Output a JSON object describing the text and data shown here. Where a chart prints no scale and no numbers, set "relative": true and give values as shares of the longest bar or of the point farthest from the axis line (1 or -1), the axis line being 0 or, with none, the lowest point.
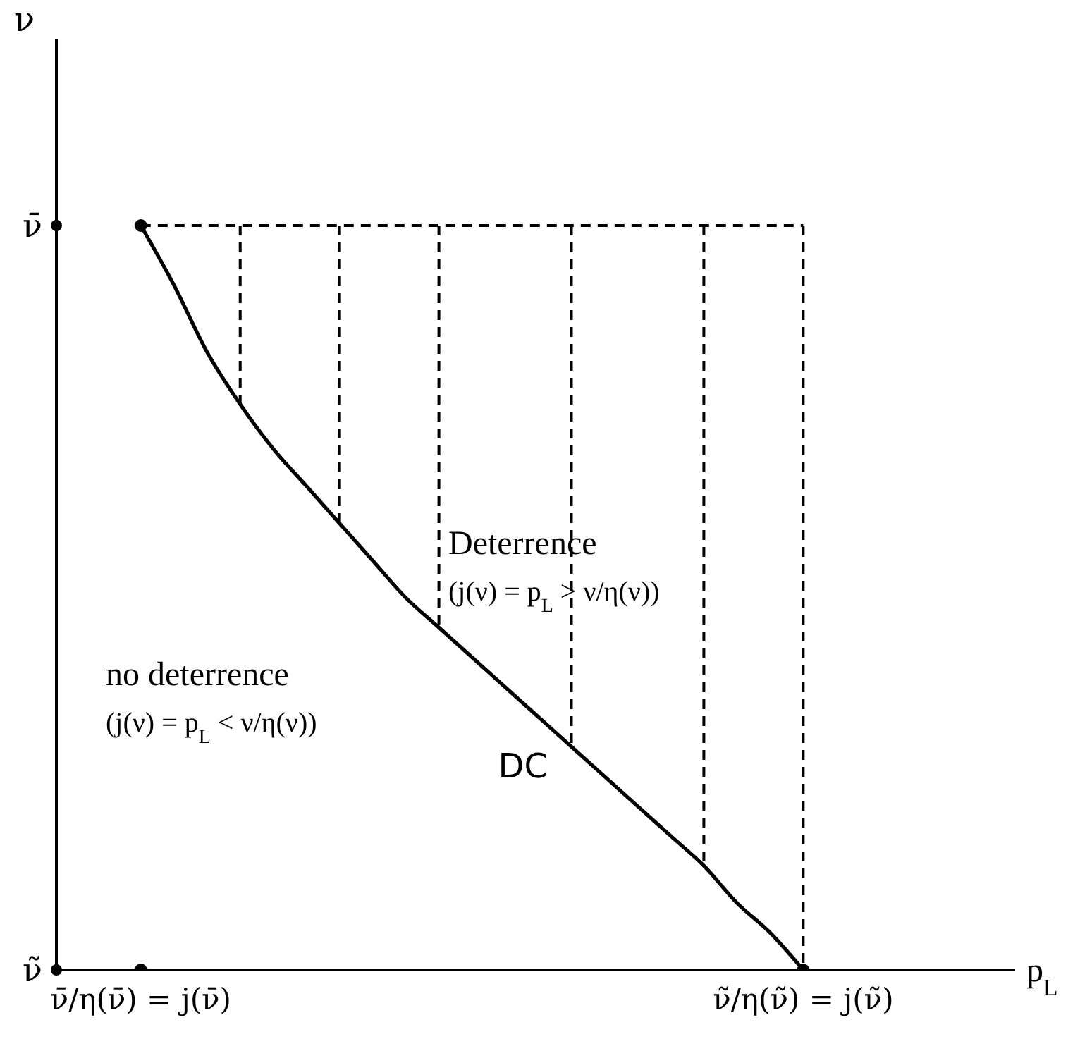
{
  "chart_data": {
    "type": "line",
    "relative": true,
    "xlabel": "p$_{L}$",
    "grid": false,
    "legend": false,
    "categories": [
      "ν̄/η(ν̄) = j(ν̄)",
      null,
      null,
      null,
      null,
      null,
      null,
      null,
      null,
      null,
      null,
      null,
      null,
      null,
      null,
      null,
      null,
      null,
      null,
      null,
      "ν̃/η(ν̃) = j(ν̃)"
    ],
    "series": [
      {
        "name": "DC",
        "color": "#000000",
        "values": [
          1,
          0.92,
          0.83,
          0.76,
          0.7,
          0.65,
          0.6,
          0.55,
          0.5,
          0.46,
          0.42,
          0.38,
          0.34,
          0.3,
          0.26,
          0.22,
          0.18,
          0.14,
          0.09,
          0.05,
          0
        ]
      },
      {
        "color": "#000000",
        "line_style": "dashed",
        "values": [
          1,
          1,
          1,
          1,
          1,
          1,
          1,
          1,
          1,
          1,
          1,
          1,
          1,
          1,
          1,
          1,
          1,
          1,
          1,
          1,
          1
        ]
      },
      {
        "type": "scatter",
        "color": "#000000",
        "x": [
          "ν̄/η(ν̄) = j(ν̄)",
          "ν̃/η(ν̃) = j(ν̃)",
          "ν̄/η(ν̄) = j(ν̄)"
        ],
        "values": [
          1,
          0,
          0
        ]
      }
    ],
    "annotations": [
      "ν",
      "ν̄",
      "ν̃",
      "Deterrence",
      "(j(ν) = p$_{L}$ > ν/η(ν))",
      "no deterrence",
      "(j(ν) = p$_{L}$ < ν/η(ν))"
    ]
  }
}
